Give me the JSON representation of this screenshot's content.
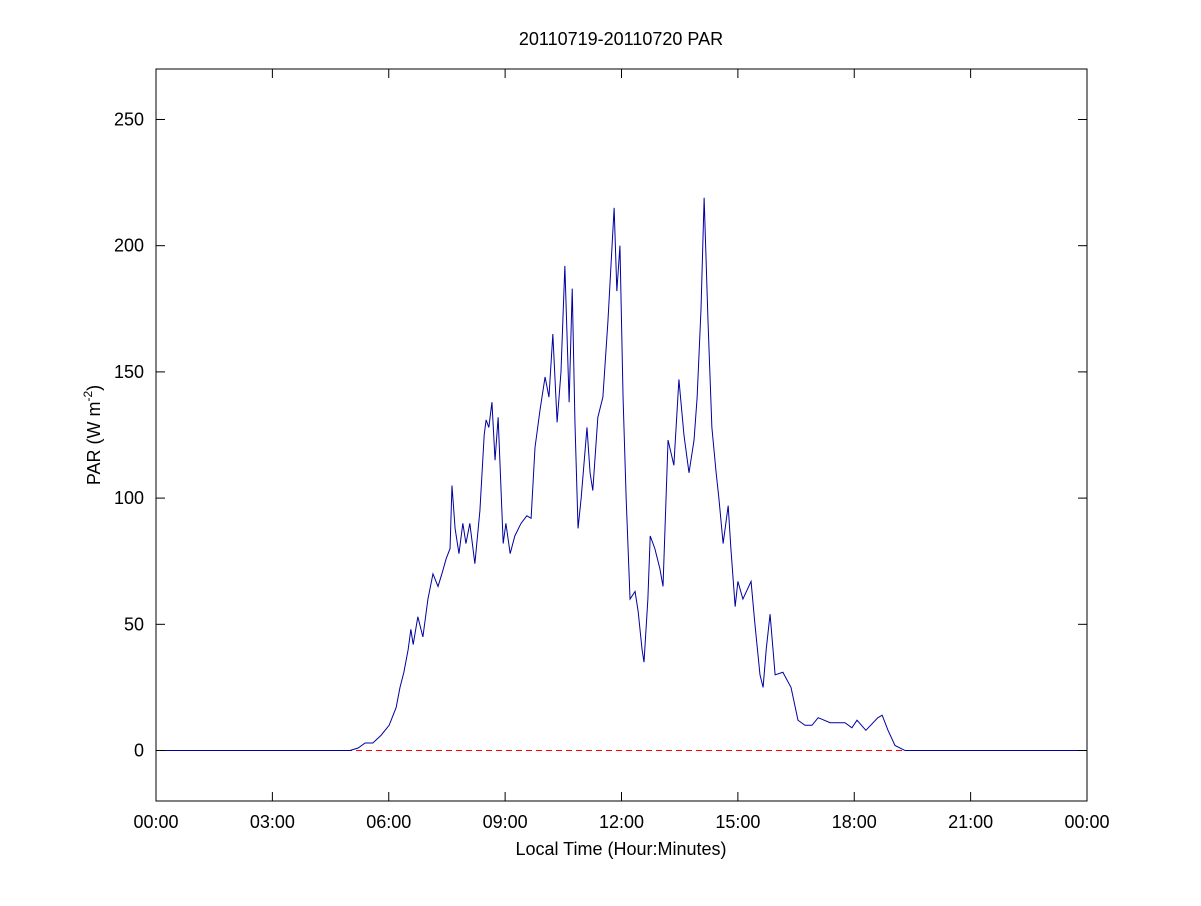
{
  "chart_data": {
    "type": "line",
    "title": "20110719-20110720 PAR",
    "x_label": "Local Time (Hour:Minutes)",
    "y_label_parts": [
      "PAR (W m",
      "-2",
      ")"
    ],
    "color": "#0000a0",
    "x": [
      0,
      5.0,
      5.21,
      5.39,
      5.59,
      5.8,
      6.01,
      6.19,
      6.29,
      6.39,
      6.5,
      6.57,
      6.63,
      6.75,
      6.88,
      7.01,
      7.14,
      7.27,
      7.37,
      7.48,
      7.58,
      7.63,
      7.71,
      7.81,
      7.91,
      7.99,
      8.09,
      8.22,
      8.35,
      8.46,
      8.51,
      8.58,
      8.66,
      8.74,
      8.82,
      8.95,
      9.02,
      9.13,
      9.25,
      9.41,
      9.56,
      9.67,
      9.77,
      9.9,
      10.03,
      10.13,
      10.23,
      10.34,
      10.44,
      10.54,
      10.65,
      10.73,
      10.8,
      10.88,
      10.96,
      11.11,
      11.19,
      11.26,
      11.39,
      11.52,
      11.65,
      11.81,
      11.88,
      11.96,
      12.04,
      12.12,
      12.22,
      12.35,
      12.43,
      12.53,
      12.58,
      12.68,
      12.74,
      12.86,
      12.99,
      13.07,
      13.2,
      13.35,
      13.48,
      13.61,
      13.74,
      13.87,
      13.95,
      14.05,
      14.13,
      14.23,
      14.33,
      14.44,
      14.51,
      14.62,
      14.75,
      14.82,
      14.93,
      15.0,
      15.13,
      15.34,
      15.44,
      15.57,
      15.65,
      15.73,
      15.83,
      15.96,
      16.16,
      16.37,
      16.55,
      16.73,
      16.91,
      17.07,
      17.38,
      17.76,
      17.94,
      18.07,
      18.3,
      18.61,
      18.72,
      18.87,
      19.05,
      19.31,
      24
    ],
    "values": [
      0,
      0,
      1,
      3,
      3,
      6,
      10,
      17,
      25,
      31,
      40,
      48,
      42,
      53,
      45,
      60,
      70,
      65,
      70,
      76,
      80,
      105,
      88,
      78,
      90,
      82,
      90,
      74,
      95,
      125,
      131,
      128,
      138,
      115,
      132,
      82,
      90,
      78,
      85,
      90,
      93,
      92,
      120,
      135,
      148,
      140,
      165,
      130,
      150,
      192,
      138,
      183,
      130,
      88,
      100,
      128,
      110,
      103,
      132,
      140,
      170,
      215,
      182,
      200,
      140,
      100,
      60,
      63,
      55,
      40,
      35,
      60,
      85,
      80,
      72,
      65,
      123,
      113,
      147,
      125,
      110,
      123,
      140,
      175,
      219,
      170,
      128,
      110,
      100,
      82,
      97,
      80,
      57,
      67,
      60,
      67,
      50,
      30,
      25,
      40,
      54,
      30,
      31,
      25,
      12,
      10,
      10,
      13,
      11,
      11,
      9,
      12,
      8,
      13,
      14,
      8,
      2,
      0,
      0
    ],
    "zero_line": {
      "value": 0,
      "color": "#ff0000"
    },
    "xlim": [
      0,
      24
    ],
    "xticks": [
      {
        "value": 0,
        "label": "00:00"
      },
      {
        "value": 3,
        "label": "03:00"
      },
      {
        "value": 6,
        "label": "06:00"
      },
      {
        "value": 9,
        "label": "09:00"
      },
      {
        "value": 12,
        "label": "12:00"
      },
      {
        "value": 15,
        "label": "15:00"
      },
      {
        "value": 18,
        "label": "18:00"
      },
      {
        "value": 21,
        "label": "21:00"
      },
      {
        "value": 24,
        "label": "00:00"
      }
    ],
    "ylim": [
      -20,
      270
    ],
    "yticks": [
      0,
      50,
      100,
      150,
      200,
      250
    ],
    "grid": false
  }
}
